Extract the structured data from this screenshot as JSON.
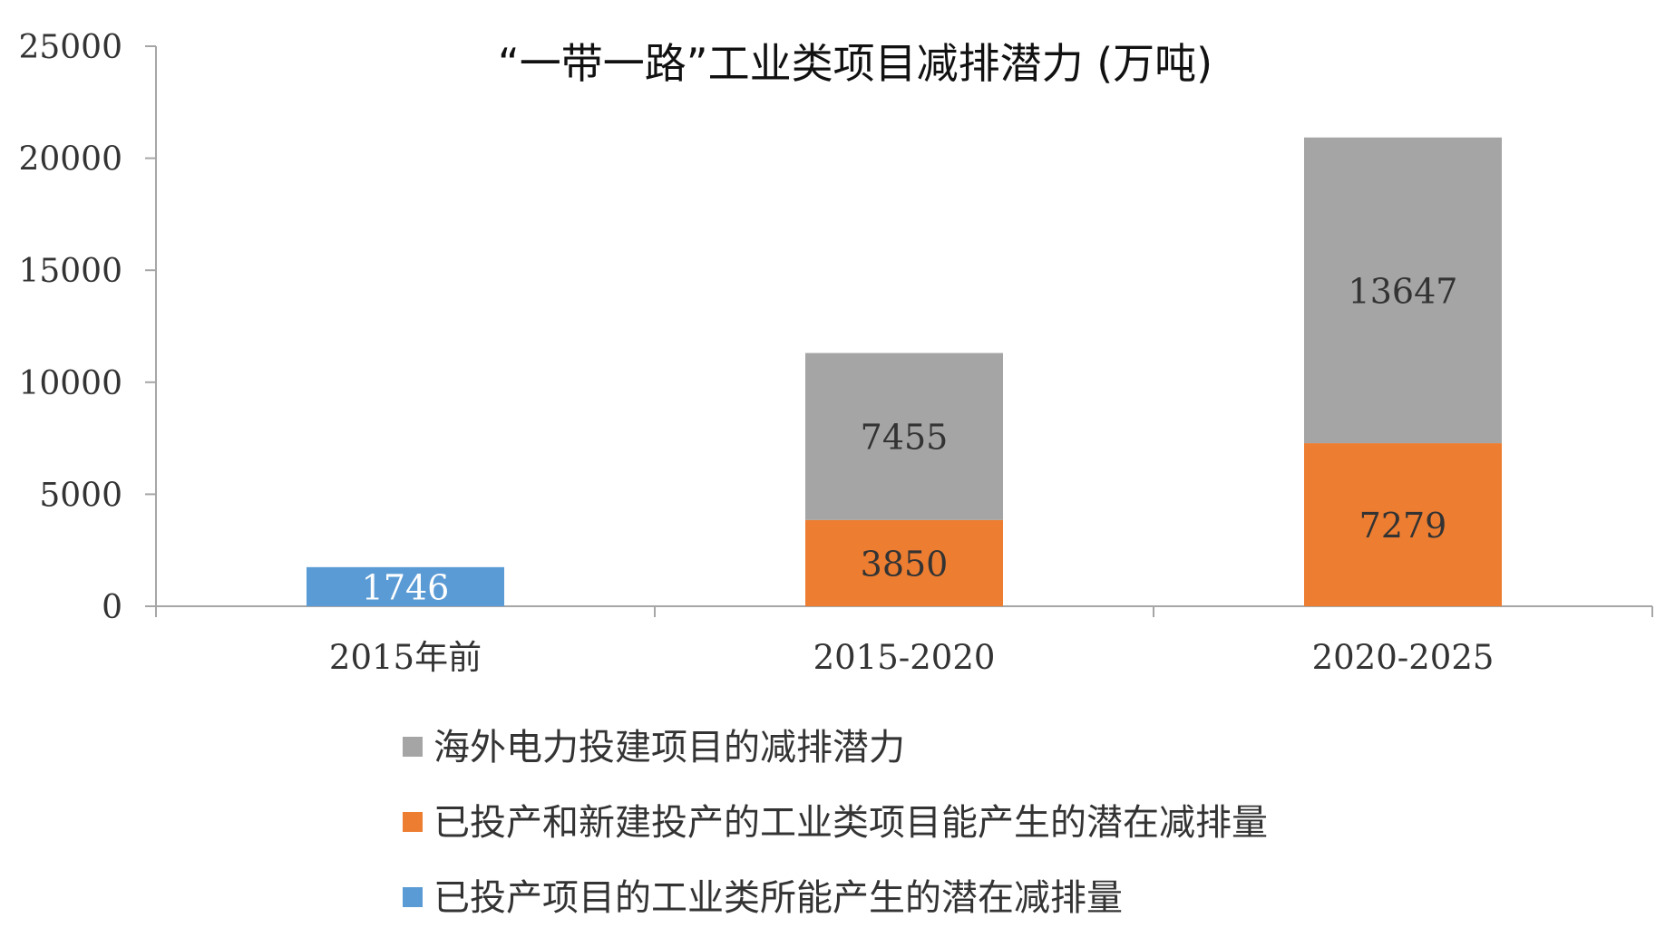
{
  "chart_data": {
    "type": "bar",
    "stacked": true,
    "title": "“一带一路”工业类项目减排潜力 (万吨)",
    "xlabel": "",
    "ylabel": "",
    "ylim": [
      0,
      25000
    ],
    "yticks": [
      0,
      5000,
      10000,
      15000,
      20000,
      25000
    ],
    "categories": [
      "2015年前",
      "2015-2020",
      "2020-2025"
    ],
    "series": [
      {
        "name": "已投产项目的工业类所能产生的潜在减排量",
        "color": "#5b9bd5",
        "values": [
          1746,
          null,
          null
        ]
      },
      {
        "name": "已投产和新建投产的工业类项目能产生的潜在减排量",
        "color": "#ed7d31",
        "values": [
          null,
          3850,
          7279
        ]
      },
      {
        "name": "海外电力投建项目的减排潜力",
        "color": "#a5a5a5",
        "values": [
          null,
          7455,
          13647
        ]
      }
    ],
    "legend_order": [
      2,
      1,
      0
    ],
    "legend_position": "bottom",
    "data_label_colors": [
      "#ffffff",
      "#333333",
      "#333333"
    ],
    "axis_color": "#a6a6a6",
    "grid": false
  }
}
